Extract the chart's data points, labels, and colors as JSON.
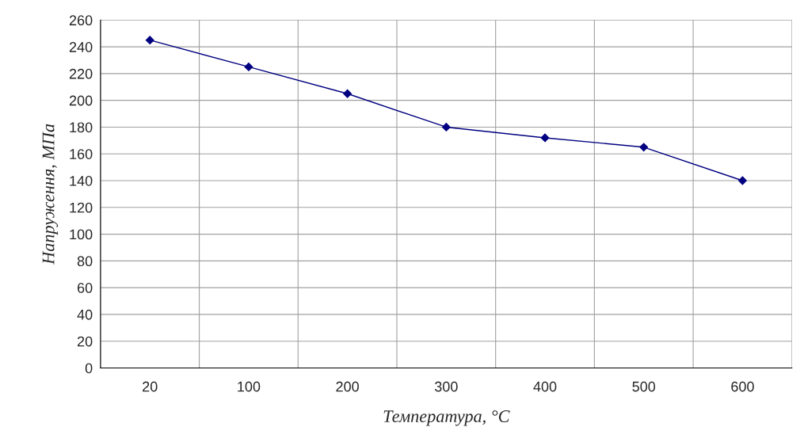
{
  "chart_data": {
    "type": "line",
    "xlabel": "Температура, °C",
    "ylabel": "Напруження, МПа",
    "categories": [
      "20",
      "100",
      "200",
      "300",
      "400",
      "500",
      "600"
    ],
    "series": [
      {
        "color": "#000080",
        "values": [
          245,
          225,
          205,
          180,
          172,
          165,
          140
        ]
      }
    ],
    "ylim": [
      0,
      260
    ],
    "yticks": [
      0,
      20,
      40,
      60,
      80,
      100,
      120,
      140,
      160,
      180,
      200,
      220,
      240,
      260
    ],
    "grid": true,
    "marker": "diamond",
    "line_style": "solid",
    "legend": false
  }
}
